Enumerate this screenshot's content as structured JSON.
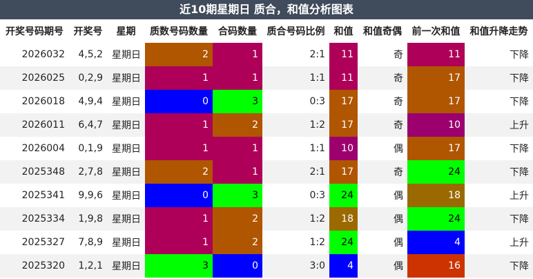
{
  "title": "近10期星期日 质合，和值分析图表",
  "table": {
    "header": [
      "开奖号码期号",
      "开奖号",
      "星期",
      "质数号码数量",
      "合码数量",
      "质合号码比例",
      "和值",
      "和值奇偶",
      "前一次和值",
      "和值升降走势"
    ],
    "rows": [
      {
        "cells": [
          "2026032",
          "4,5,2",
          "星期日",
          "2",
          "1",
          "2:1",
          "11",
          "奇",
          "11",
          "下降"
        ],
        "colors": {
          "3": "#b05500",
          "4": "#ae0058",
          "6": "#ae0058",
          "8": "#ae0058"
        }
      },
      {
        "cells": [
          "2026025",
          "0,2,9",
          "星期日",
          "1",
          "1",
          "1:1",
          "11",
          "奇",
          "17",
          "下降"
        ],
        "colors": {
          "3": "#ae0058",
          "4": "#ae0058",
          "6": "#ae0058",
          "8": "#b05500"
        }
      },
      {
        "cells": [
          "2026018",
          "4,9,4",
          "星期日",
          "0",
          "3",
          "0:3",
          "17",
          "奇",
          "17",
          "下降"
        ],
        "colors": {
          "3": "#0000ff",
          "4": "#00ff00",
          "6": "#b05500",
          "8": "#b05500"
        }
      },
      {
        "cells": [
          "2026011",
          "6,4,7",
          "星期日",
          "1",
          "2",
          "1:2",
          "17",
          "奇",
          "10",
          "上升"
        ],
        "colors": {
          "3": "#ae0058",
          "4": "#b05500",
          "6": "#b05500",
          "8": "#9c006e"
        }
      },
      {
        "cells": [
          "2026004",
          "0,1,9",
          "星期日",
          "1",
          "1",
          "1:1",
          "10",
          "偶",
          "17",
          "下降"
        ],
        "colors": {
          "3": "#ae0058",
          "4": "#ae0058",
          "6": "#9c006e",
          "8": "#b05500"
        }
      },
      {
        "cells": [
          "2025348",
          "2,7,8",
          "星期日",
          "2",
          "1",
          "2:1",
          "17",
          "奇",
          "24",
          "下降"
        ],
        "colors": {
          "3": "#b05500",
          "4": "#ae0058",
          "6": "#b05500",
          "8": "#00ff00"
        }
      },
      {
        "cells": [
          "2025341",
          "9,9,6",
          "星期日",
          "0",
          "3",
          "0:3",
          "24",
          "偶",
          "18",
          "上升"
        ],
        "colors": {
          "3": "#0000ff",
          "4": "#00ff00",
          "6": "#00ff00",
          "8": "#9a6a00"
        }
      },
      {
        "cells": [
          "2025334",
          "1,9,8",
          "星期日",
          "1",
          "2",
          "1:2",
          "18",
          "偶",
          "24",
          "下降"
        ],
        "colors": {
          "3": "#ae0058",
          "4": "#b05500",
          "6": "#9a6a00",
          "8": "#00ff00"
        }
      },
      {
        "cells": [
          "2025327",
          "7,8,9",
          "星期日",
          "1",
          "2",
          "1:2",
          "24",
          "偶",
          "4",
          "上升"
        ],
        "colors": {
          "3": "#ae0058",
          "4": "#b05500",
          "6": "#00ff00",
          "8": "#0000ff"
        }
      },
      {
        "cells": [
          "2025320",
          "1,2,1",
          "星期日",
          "3",
          "0",
          "3:0",
          "4",
          "偶",
          "16",
          "下降"
        ],
        "colors": {
          "3": "#00ff00",
          "4": "#0000ff",
          "6": "#0000ff",
          "8": "#cc3300"
        }
      }
    ]
  }
}
